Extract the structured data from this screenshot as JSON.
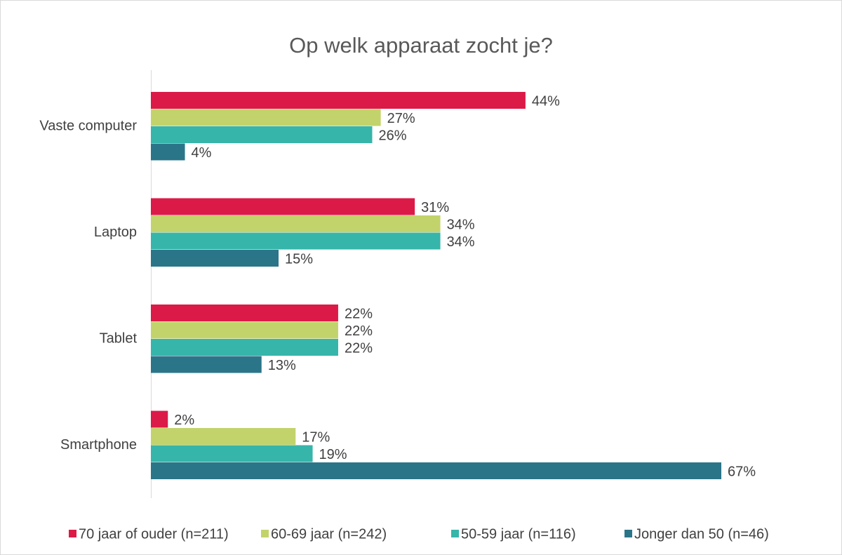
{
  "chart_data": {
    "type": "bar",
    "orientation": "horizontal",
    "title": "Op welk apparaat zocht je?",
    "categories": [
      "Vaste computer",
      "Laptop",
      "Tablet",
      "Smartphone"
    ],
    "series": [
      {
        "name": "70 jaar of ouder (n=211)",
        "color": "#dc1a47",
        "values": [
          44,
          31,
          22,
          2
        ],
        "value_labels": [
          "44%",
          "31%",
          "22%",
          "2%"
        ]
      },
      {
        "name": "60-69 jaar (n=242)",
        "color": "#c3d36b",
        "values": [
          27,
          34,
          22,
          17
        ],
        "value_labels": [
          "27%",
          "34%",
          "22%",
          "17%"
        ]
      },
      {
        "name": "50-59 jaar (n=116)",
        "color": "#36b5aa",
        "values": [
          26,
          34,
          22,
          19
        ],
        "value_labels": [
          "26%",
          "34%",
          "22%",
          "19%"
        ]
      },
      {
        "name": "Jonger dan 50 (n=46)",
        "color": "#2b7589",
        "values": [
          4,
          15,
          13,
          67
        ],
        "value_labels": [
          "4%",
          "15%",
          "13%",
          "67%"
        ]
      }
    ],
    "legend": "bottom"
  }
}
